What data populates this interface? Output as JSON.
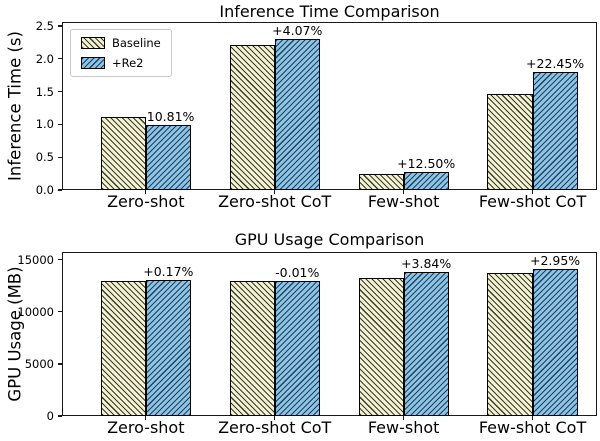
{
  "colors": {
    "baseline_fill": "#F3F3D4",
    "re2_fill": "#8EC4E3",
    "bar_edge": "#000000",
    "axis_color": "#1a1a1a",
    "legend_border": "#c9c9c9",
    "background": "#ffffff"
  },
  "legend": {
    "position": "upper-left",
    "entries": [
      {
        "label": "Baseline",
        "swatch": "beige-backslash-hatch"
      },
      {
        "label": "+Re2",
        "swatch": "blue-slash-hatch"
      }
    ]
  },
  "chart_data": [
    {
      "type": "bar",
      "title": "Inference Time Comparison",
      "xlabel": "",
      "ylabel": "Inference Time (s)",
      "categories": [
        "Zero-shot",
        "Zero-shot CoT",
        "Few-shot",
        "Few-shot CoT"
      ],
      "series": [
        {
          "name": "Baseline",
          "values": [
            1.11,
            2.21,
            0.24,
            1.47
          ]
        },
        {
          "name": "+Re2",
          "values": [
            0.99,
            2.3,
            0.27,
            1.8
          ]
        }
      ],
      "annotations": [
        "-10.81%",
        "+4.07%",
        "+12.50%",
        "+22.45%"
      ],
      "yticks": [
        0.0,
        0.5,
        1.0,
        1.5,
        2.0,
        2.5
      ],
      "ytick_labels": [
        "0.0",
        "0.5",
        "1.0",
        "1.5",
        "2.0",
        "2.5"
      ],
      "ylim": [
        0,
        2.56
      ],
      "grid": false,
      "legend_position": "upper left",
      "hatches": [
        "\\\\",
        "//"
      ]
    },
    {
      "type": "bar",
      "title": "GPU Usage Comparison",
      "xlabel": "",
      "ylabel": "GPU Usage (MB)",
      "categories": [
        "Zero-shot",
        "Zero-shot CoT",
        "Few-shot",
        "Few-shot CoT"
      ],
      "series": [
        {
          "name": "Baseline",
          "values": [
            13000,
            13000,
            13300,
            13700
          ]
        },
        {
          "name": "+Re2",
          "values": [
            13022,
            12999,
            13811,
            14104
          ]
        }
      ],
      "annotations": [
        "+0.17%",
        "-0.01%",
        "+3.84%",
        "+2.95%"
      ],
      "yticks": [
        0,
        5000,
        10000,
        15000
      ],
      "ytick_labels": [
        "0",
        "5000",
        "10000",
        "15000"
      ],
      "ylim": [
        0,
        15750
      ],
      "grid": false,
      "legend_position": "none",
      "hatches": [
        "\\\\",
        "//"
      ]
    }
  ]
}
